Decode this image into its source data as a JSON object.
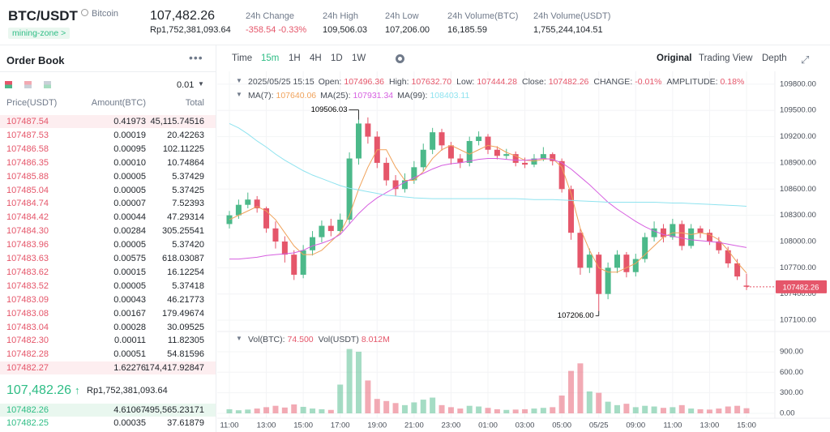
{
  "header": {
    "pair": "BTC/USDT",
    "coin": "Bitcoin",
    "tag": "mining-zone >",
    "price": "107,482.26",
    "price_local": "Rp1,752,381,093.64",
    "stats": [
      {
        "label": "24h Change",
        "value": "-358.54 -0.33%"
      },
      {
        "label": "24h High",
        "value": "109,506.03"
      },
      {
        "label": "24h Low",
        "value": "107,206.00"
      },
      {
        "label": "24h Volume(BTC)",
        "value": "16,185.59"
      },
      {
        "label": "24h Volume(USDT)",
        "value": "1,755,244,104.51"
      }
    ]
  },
  "order_book": {
    "title": "Order Book",
    "precision": "0.01",
    "columns": [
      "Price(USDT)",
      "Amount(BTC)",
      "Total"
    ],
    "asks": [
      [
        "107487.54",
        "0.41973",
        "45,115.74516"
      ],
      [
        "107487.53",
        "0.00019",
        "20.42263"
      ],
      [
        "107486.58",
        "0.00095",
        "102.11225"
      ],
      [
        "107486.35",
        "0.00010",
        "10.74864"
      ],
      [
        "107485.88",
        "0.00005",
        "5.37429"
      ],
      [
        "107485.04",
        "0.00005",
        "5.37425"
      ],
      [
        "107484.74",
        "0.00007",
        "7.52393"
      ],
      [
        "107484.42",
        "0.00044",
        "47.29314"
      ],
      [
        "107484.30",
        "0.00284",
        "305.25541"
      ],
      [
        "107483.96",
        "0.00005",
        "5.37420"
      ],
      [
        "107483.63",
        "0.00575",
        "618.03087"
      ],
      [
        "107483.62",
        "0.00015",
        "16.12254"
      ],
      [
        "107483.52",
        "0.00005",
        "5.37418"
      ],
      [
        "107483.09",
        "0.00043",
        "46.21773"
      ],
      [
        "107483.08",
        "0.00167",
        "179.49674"
      ],
      [
        "107483.04",
        "0.00028",
        "30.09525"
      ],
      [
        "107482.30",
        "0.00011",
        "11.82305"
      ],
      [
        "107482.28",
        "0.00051",
        "54.81596"
      ],
      [
        "107482.27",
        "1.62276",
        "174,417.92847"
      ]
    ],
    "last_price": "107,482.26",
    "last_price_local": "Rp1,752,381,093.64",
    "bids": [
      [
        "107482.26",
        "4.61067",
        "495,565.23171"
      ],
      [
        "107482.25",
        "0.00035",
        "37.61879"
      ]
    ]
  },
  "toolbar": {
    "intervals": [
      "Time",
      "15m",
      "1H",
      "4H",
      "1D",
      "1W"
    ],
    "views": [
      "Original",
      "Trading View",
      "Depth"
    ]
  },
  "chart_data": {
    "type": "candlestick",
    "date": "2025/05/25 15:15",
    "ohlc": [
      {
        "label": "Open:",
        "value": "107496.36"
      },
      {
        "label": "High:",
        "value": "107632.70"
      },
      {
        "label": "Low:",
        "value": "107444.28"
      },
      {
        "label": "Close:",
        "value": "107482.26"
      },
      {
        "label": "CHANGE:",
        "value": "-0.01%"
      },
      {
        "label": "AMPLITUDE:",
        "value": "0.18%"
      }
    ],
    "up_color": "#4cb98a",
    "down_color": "#e5566a",
    "categories": [
      "11:00",
      null,
      null,
      null,
      "13:00",
      null,
      null,
      null,
      "15:00",
      null,
      null,
      null,
      "17:00",
      null,
      null,
      null,
      "19:00",
      null,
      null,
      null,
      "21:00",
      null,
      null,
      null,
      "23:00",
      null,
      null,
      null,
      "01:00",
      null,
      null,
      null,
      "03:00",
      null,
      null,
      null,
      "05:00",
      null,
      null,
      null,
      "05/25",
      null,
      null,
      null,
      "09:00",
      null,
      null,
      null,
      "11:00",
      null,
      null,
      null,
      "13:00",
      null,
      null,
      null,
      "15:00"
    ],
    "candles": [
      [
        108200,
        108350,
        108150,
        108300
      ],
      [
        108300,
        108480,
        108260,
        108420
      ],
      [
        108420,
        108560,
        108380,
        108480
      ],
      [
        108480,
        108520,
        108330,
        108380
      ],
      [
        108380,
        108400,
        108100,
        108150
      ],
      [
        108150,
        108230,
        107920,
        108000
      ],
      [
        108000,
        108060,
        107760,
        107850
      ],
      [
        107850,
        107900,
        107560,
        107620
      ],
      [
        107620,
        107960,
        107580,
        107900
      ],
      [
        107900,
        108120,
        107840,
        108050
      ],
      [
        108050,
        108240,
        107990,
        108180
      ],
      [
        108180,
        108260,
        108060,
        108120
      ],
      [
        108120,
        108320,
        108080,
        108250
      ],
      [
        108250,
        109020,
        108200,
        108950
      ],
      [
        108950,
        109506.03,
        108880,
        109350
      ],
      [
        109350,
        109420,
        109120,
        109200
      ],
      [
        109200,
        109260,
        108840,
        108900
      ],
      [
        108900,
        108960,
        108640,
        108700
      ],
      [
        108700,
        108760,
        108520,
        108600
      ],
      [
        108600,
        108780,
        108560,
        108700
      ],
      [
        108700,
        108920,
        108660,
        108850
      ],
      [
        108850,
        109120,
        108800,
        109050
      ],
      [
        109050,
        109300,
        109000,
        109250
      ],
      [
        109250,
        109290,
        109040,
        109100
      ],
      [
        109100,
        109140,
        108880,
        108950
      ],
      [
        108950,
        109000,
        108840,
        108900
      ],
      [
        108900,
        109200,
        108860,
        109150
      ],
      [
        109150,
        109260,
        109100,
        109200
      ],
      [
        109200,
        109230,
        109000,
        109050
      ],
      [
        109050,
        109090,
        108940,
        108980
      ],
      [
        108980,
        109060,
        108940,
        109000
      ],
      [
        109000,
        109030,
        108860,
        108900
      ],
      [
        108900,
        108960,
        108840,
        108880
      ],
      [
        108880,
        109000,
        108850,
        108950
      ],
      [
        108950,
        109080,
        108920,
        109000
      ],
      [
        109000,
        109020,
        108870,
        108920
      ],
      [
        108920,
        108950,
        108560,
        108600
      ],
      [
        108600,
        108640,
        108020,
        108100
      ],
      [
        108100,
        108150,
        107620,
        107700
      ],
      [
        107700,
        107920,
        107640,
        107850
      ],
      [
        107850,
        107880,
        107206,
        107400
      ],
      [
        107400,
        107760,
        107340,
        107700
      ],
      [
        107700,
        107900,
        107640,
        107850
      ],
      [
        107850,
        107880,
        107590,
        107650
      ],
      [
        107650,
        107860,
        107600,
        107800
      ],
      [
        107800,
        108100,
        107760,
        108050
      ],
      [
        108050,
        108230,
        108000,
        108150
      ],
      [
        108150,
        108200,
        107990,
        108050
      ],
      [
        108050,
        108260,
        108020,
        108200
      ],
      [
        108200,
        108240,
        107900,
        107950
      ],
      [
        107950,
        108200,
        107920,
        108150
      ],
      [
        108150,
        108180,
        108040,
        108100
      ],
      [
        108100,
        108140,
        107960,
        108000
      ],
      [
        108000,
        108050,
        107860,
        107900
      ],
      [
        107900,
        107940,
        107700,
        107750
      ],
      [
        107750,
        107800,
        107560,
        107600
      ],
      [
        107496.36,
        107632.7,
        107444.28,
        107482.26
      ]
    ],
    "extreme_labels": {
      "high": "109506.03",
      "low": "107206.00"
    },
    "ylim": [
      106980,
      109910
    ],
    "yticks": [
      {
        "value": 107100,
        "label": "107100.00"
      },
      {
        "value": 107400,
        "label": "107400.00"
      },
      {
        "value": 107700,
        "label": "107700.00"
      },
      {
        "value": 108000,
        "label": "108000.00"
      },
      {
        "value": 108300,
        "label": "108300.00"
      },
      {
        "value": 108600,
        "label": "108600.00"
      },
      {
        "value": 108900,
        "label": "108900.00"
      },
      {
        "value": 109200,
        "label": "109200.00"
      },
      {
        "value": 109500,
        "label": "109500.00"
      },
      {
        "value": 109800,
        "label": "109800.00"
      }
    ],
    "grid": true,
    "series": [
      {
        "name": "MA(7):",
        "color": "#f0a25a",
        "values": [
          108250,
          108300,
          108350,
          108400,
          108350,
          108250,
          108100,
          107950,
          107850,
          107850,
          107900,
          108000,
          108100,
          108300,
          108600,
          108850,
          109050,
          109050,
          108850,
          108700,
          108700,
          108800,
          108950,
          109050,
          109100,
          109050,
          109000,
          109050,
          109100,
          109080,
          109020,
          108980,
          108930,
          108920,
          108940,
          108950,
          108850,
          108550,
          108150,
          107900,
          107700,
          107650,
          107650,
          107700,
          107750,
          107850,
          107950,
          108050,
          108100,
          108100,
          108080,
          108100,
          108080,
          108020,
          107900,
          107760,
          107640.06
        ]
      },
      {
        "name": "MA(25):",
        "color": "#d65fe0",
        "values": [
          107800,
          107800,
          107810,
          107820,
          107840,
          107850,
          107860,
          107870,
          107900,
          107950,
          107980,
          108020,
          108080,
          108200,
          108320,
          108420,
          108500,
          108560,
          108620,
          108680,
          108730,
          108780,
          108830,
          108870,
          108890,
          108900,
          108920,
          108940,
          108950,
          108950,
          108940,
          108930,
          108930,
          108940,
          108950,
          108940,
          108900,
          108830,
          108740,
          108650,
          108550,
          108450,
          108370,
          108300,
          108230,
          108170,
          108120,
          108080,
          108060,
          108040,
          108020,
          108010,
          108000,
          107990,
          107970,
          107950,
          107931.34
        ]
      },
      {
        "name": "MA(99):",
        "color": "#8fe3ef",
        "values": [
          109350,
          109300,
          109230,
          109150,
          109080,
          109000,
          108930,
          108870,
          108810,
          108760,
          108720,
          108680,
          108640,
          108610,
          108590,
          108570,
          108550,
          108530,
          108520,
          108510,
          108500,
          108495,
          108490,
          108490,
          108490,
          108490,
          108490,
          108490,
          108490,
          108490,
          108490,
          108490,
          108485,
          108480,
          108480,
          108480,
          108475,
          108470,
          108465,
          108460,
          108455,
          108450,
          108450,
          108450,
          108450,
          108450,
          108450,
          108445,
          108440,
          108440,
          108435,
          108430,
          108425,
          108420,
          108415,
          108410,
          108403.11
        ]
      }
    ],
    "volume": {
      "legend": [
        {
          "label": "Vol(BTC):",
          "value": "74.500"
        },
        {
          "label": "Vol(USDT)",
          "value": "8.012M"
        }
      ],
      "values": [
        60,
        45,
        55,
        70,
        90,
        110,
        85,
        130,
        95,
        70,
        60,
        50,
        420,
        940,
        900,
        480,
        210,
        180,
        150,
        120,
        160,
        200,
        230,
        120,
        90,
        70,
        110,
        100,
        80,
        60,
        50,
        55,
        60,
        70,
        80,
        90,
        260,
        620,
        730,
        320,
        300,
        170,
        120,
        140,
        90,
        110,
        100,
        80,
        90,
        120,
        70,
        60,
        55,
        70,
        100,
        110,
        74.5
      ],
      "ylim": [
        -95,
        1160
      ],
      "yticks": [
        {
          "value": 0,
          "label": "0.00"
        },
        {
          "value": 300,
          "label": "300.00"
        },
        {
          "value": 600,
          "label": "600.00"
        },
        {
          "value": 900,
          "label": "900.00"
        }
      ]
    }
  }
}
